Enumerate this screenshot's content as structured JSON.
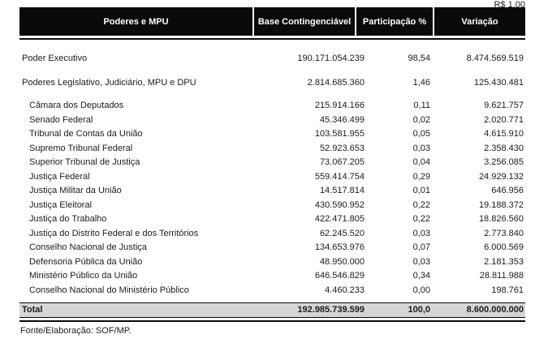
{
  "currency_note": "R$ 1,00",
  "table": {
    "columns": {
      "c1": "Poderes e MPU",
      "c2": "Base Contingenciável",
      "c3": "Participação %",
      "c4": "Variação"
    },
    "rows": [
      {
        "name": "Poder Executivo",
        "base": "190.171.054.239",
        "part": "98,54",
        "var": "8.474.569.519"
      },
      {
        "name": "Poderes Legislativo, Judiciário, MPU e DPU",
        "base": "2.814.685.360",
        "part": "1,46",
        "var": "125.430.481"
      },
      {
        "name": "Câmara dos Deputados",
        "base": "215.914.166",
        "part": "0,11",
        "var": "9.621.757"
      },
      {
        "name": "Senado Federal",
        "base": "45.346.499",
        "part": "0,02",
        "var": "2.020.771"
      },
      {
        "name": "Tribunal de Contas da União",
        "base": "103.581.955",
        "part": "0,05",
        "var": "4.615.910"
      },
      {
        "name": "Supremo Tribunal Federal",
        "base": "52.923.653",
        "part": "0,03",
        "var": "2.358.430"
      },
      {
        "name": "Superior Tribunal de Justiça",
        "base": "73.067.205",
        "part": "0,04",
        "var": "3.256.085"
      },
      {
        "name": "Justiça Federal",
        "base": "559.414.754",
        "part": "0,29",
        "var": "24.929.132"
      },
      {
        "name": "Justiça Militar da União",
        "base": "14.517.814",
        "part": "0,01",
        "var": "646.956"
      },
      {
        "name": "Justiça Eleitoral",
        "base": "430.590.952",
        "part": "0,22",
        "var": "19.188.372"
      },
      {
        "name": "Justiça do Trabalho",
        "base": "422.471.805",
        "part": "0,22",
        "var": "18.826.560"
      },
      {
        "name": "Justiça do Distrito Federal e dos Territórios",
        "base": "62.245.520",
        "part": "0,03",
        "var": "2.773.840"
      },
      {
        "name": "Conselho Nacional de Justiça",
        "base": "134.653.976",
        "part": "0,07",
        "var": "6.000.569"
      },
      {
        "name": "Defensoria Pública da União",
        "base": "48.950.000",
        "part": "0,03",
        "var": "2.181.353"
      },
      {
        "name": "Ministério Público da União",
        "base": "646.546.829",
        "part": "0,34",
        "var": "28.811.988"
      },
      {
        "name": "Conselho Nacional do Ministério Público",
        "base": "4.460.233",
        "part": "0,00",
        "var": "198.761"
      }
    ],
    "total": {
      "name": "Total",
      "base": "192.985.739.599",
      "part": "100,0",
      "var": "8.600.000.000"
    }
  },
  "footer": {
    "source": "Fonte/Elaboração: SOF/MP."
  },
  "colors": {
    "header_bg": "#0a0a0a",
    "header_text": "#ffffff",
    "total_bg": "#d6d6d6"
  }
}
